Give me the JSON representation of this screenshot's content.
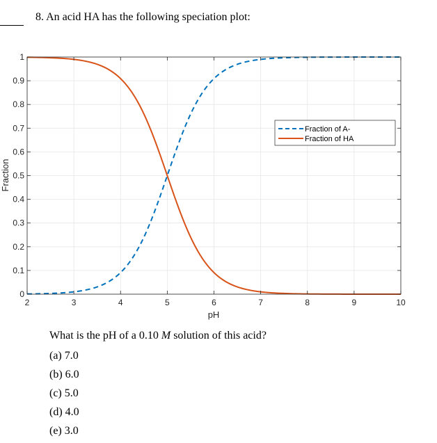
{
  "question": {
    "number": "8.",
    "title": "8.  An acid HA has the following speciation plot:",
    "prompt_before": "What is the pH of a 0.10 ",
    "prompt_italic": "M",
    "prompt_after": " solution of this acid?",
    "options": [
      {
        "label": "(a)",
        "value": "7.0",
        "text": "(a) 7.0"
      },
      {
        "label": "(b)",
        "value": "6.0",
        "text": "(b) 6.0"
      },
      {
        "label": "(c)",
        "value": "5.0",
        "text": "(c) 5.0"
      },
      {
        "label": "(d)",
        "value": "4.0",
        "text": "(d) 4.0"
      },
      {
        "label": "(e)",
        "value": "3.0",
        "text": "(e) 3.0"
      }
    ]
  },
  "colors": {
    "fraction_A": "#0072BD",
    "fraction_HA": "#D95319",
    "axis": "#262626",
    "grid": "#e6e6e6",
    "tick_label": "#262626"
  },
  "chart_data": {
    "type": "line",
    "title": "",
    "xlabel": "pH",
    "ylabel": "Fraction",
    "xlim": [
      2,
      10
    ],
    "ylim": [
      0,
      1
    ],
    "grid": true,
    "legend_position": "upper right (inside)",
    "x_ticks": [
      2,
      3,
      4,
      5,
      6,
      7,
      8,
      9,
      10
    ],
    "y_ticks": [
      0,
      0.1,
      0.2,
      0.3,
      0.4,
      0.5,
      0.6,
      0.7,
      0.8,
      0.9,
      1
    ],
    "y_tick_labels": [
      "0",
      "0.1",
      "0.2",
      "0.3",
      "0.4",
      "0.5",
      "0.6",
      "0.7",
      "0.8",
      "0.9",
      "1"
    ],
    "annotations": [
      "curves cross at pH 5.0, fraction 0.5 (pKa = 5)"
    ],
    "x": [
      2,
      2.5,
      3,
      3.5,
      4,
      4.5,
      5,
      5.5,
      6,
      6.5,
      7,
      7.5,
      8,
      8.5,
      9,
      9.5,
      10
    ],
    "series": [
      {
        "name": "Fraction of A-",
        "style": "dashed",
        "color": "#0072BD",
        "values": [
          0.001,
          0.003,
          0.01,
          0.031,
          0.091,
          0.24,
          0.5,
          0.76,
          0.909,
          0.969,
          0.99,
          0.997,
          0.999,
          1.0,
          1.0,
          1.0,
          1.0
        ]
      },
      {
        "name": "Fraction of HA",
        "style": "solid",
        "color": "#D95319",
        "values": [
          0.999,
          0.997,
          0.99,
          0.969,
          0.909,
          0.76,
          0.5,
          0.24,
          0.091,
          0.031,
          0.01,
          0.003,
          0.001,
          0.0,
          0.0,
          0.0,
          0.0
        ]
      }
    ]
  }
}
